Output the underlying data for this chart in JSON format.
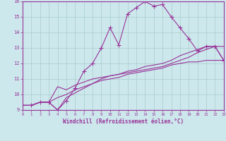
{
  "xlabel": "Windchill (Refroidissement éolien,°C)",
  "bg_color": "#cce8ec",
  "line_color": "#993399",
  "grid_color": "#aacccc",
  "axis_color": "#993399",
  "tick_color": "#993399",
  "xlim": [
    0,
    23
  ],
  "ylim": [
    9,
    16
  ],
  "x_ticks": [
    0,
    1,
    2,
    3,
    4,
    5,
    6,
    7,
    8,
    9,
    10,
    11,
    12,
    13,
    14,
    15,
    16,
    17,
    18,
    19,
    20,
    21,
    22,
    23
  ],
  "y_ticks": [
    9,
    10,
    11,
    12,
    13,
    14,
    15,
    16
  ],
  "curves": [
    {
      "x": [
        0,
        1,
        2,
        3,
        4,
        5,
        6,
        7,
        8,
        9,
        10,
        11,
        12,
        13,
        14,
        15,
        16,
        17,
        18,
        19,
        20,
        21,
        22,
        23
      ],
      "y": [
        9.3,
        9.3,
        9.5,
        9.5,
        9.0,
        9.6,
        10.4,
        11.5,
        12.0,
        13.0,
        14.3,
        13.2,
        15.2,
        15.6,
        16.0,
        15.7,
        15.8,
        15.0,
        14.3,
        13.6,
        12.8,
        13.1,
        13.1,
        12.2
      ],
      "marker": true
    },
    {
      "x": [
        0,
        1,
        2,
        3,
        4,
        5,
        6,
        7,
        8,
        9,
        10,
        11,
        12,
        13,
        14,
        15,
        16,
        17,
        18,
        19,
        20,
        21,
        22,
        23
      ],
      "y": [
        9.3,
        9.3,
        9.5,
        9.5,
        9.8,
        10.0,
        10.3,
        10.5,
        10.7,
        10.9,
        11.0,
        11.1,
        11.3,
        11.4,
        11.5,
        11.6,
        11.7,
        11.9,
        12.0,
        12.1,
        12.1,
        12.2,
        12.2,
        12.2
      ],
      "marker": false
    },
    {
      "x": [
        0,
        1,
        2,
        3,
        4,
        5,
        6,
        7,
        8,
        9,
        10,
        11,
        12,
        13,
        14,
        15,
        16,
        17,
        18,
        19,
        20,
        21,
        22,
        23
      ],
      "y": [
        9.3,
        9.3,
        9.5,
        9.5,
        10.5,
        10.3,
        10.6,
        10.8,
        11.0,
        11.1,
        11.2,
        11.3,
        11.4,
        11.5,
        11.6,
        11.7,
        11.8,
        12.0,
        12.2,
        12.4,
        12.7,
        12.9,
        13.1,
        13.1
      ],
      "marker": false
    },
    {
      "x": [
        0,
        1,
        2,
        3,
        4,
        5,
        6,
        7,
        8,
        9,
        10,
        11,
        12,
        13,
        14,
        15,
        16,
        17,
        18,
        19,
        20,
        21,
        22,
        23
      ],
      "y": [
        9.3,
        9.3,
        9.5,
        9.5,
        9.0,
        9.8,
        10.1,
        10.4,
        10.7,
        11.0,
        11.2,
        11.3,
        11.5,
        11.6,
        11.8,
        11.9,
        12.0,
        12.2,
        12.5,
        12.7,
        12.9,
        13.1,
        13.1,
        12.2
      ],
      "marker": false
    }
  ]
}
